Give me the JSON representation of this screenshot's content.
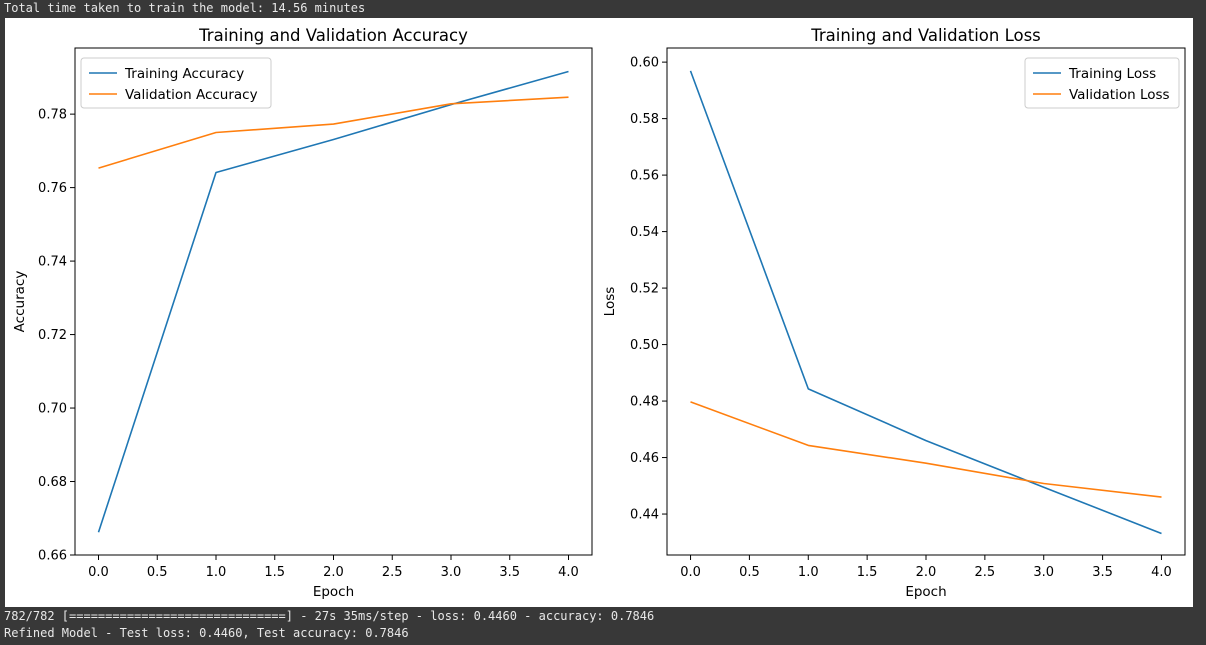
{
  "console": {
    "top_line": "Total time taken to train the model: 14.56 minutes",
    "progress_line": "782/782 [==============================] - 27s 35ms/step - loss: 0.4460 - accuracy: 0.7846",
    "result_line": "Refined Model - Test loss: 0.4460, Test accuracy: 0.7846"
  },
  "chart_data": [
    {
      "type": "line",
      "title": "Training and Validation Accuracy",
      "xlabel": "Epoch",
      "ylabel": "Accuracy",
      "x": [
        0,
        1,
        2,
        3,
        4
      ],
      "xlim": [
        -0.2,
        4.2
      ],
      "ylim": [
        0.66,
        0.798
      ],
      "xticks": [
        "0.0",
        "0.5",
        "1.0",
        "1.5",
        "2.0",
        "2.5",
        "3.0",
        "3.5",
        "4.0"
      ],
      "yticks": [
        "0.66",
        "0.68",
        "0.70",
        "0.72",
        "0.74",
        "0.76",
        "0.78"
      ],
      "legend": "top-left",
      "grid": false,
      "series": [
        {
          "name": "Training Accuracy",
          "color": "#1f77b4",
          "values": [
            0.6662,
            0.7641,
            0.7731,
            0.7826,
            0.7916
          ]
        },
        {
          "name": "Validation Accuracy",
          "color": "#ff7f0e",
          "values": [
            0.7653,
            0.775,
            0.7773,
            0.7828,
            0.7846
          ]
        }
      ]
    },
    {
      "type": "line",
      "title": "Training and Validation Loss",
      "xlabel": "Epoch",
      "ylabel": "Loss",
      "x": [
        0,
        1,
        2,
        3,
        4
      ],
      "xlim": [
        -0.2,
        4.2
      ],
      "ylim": [
        0.4255,
        0.605
      ],
      "xticks": [
        "0.0",
        "0.5",
        "1.0",
        "1.5",
        "2.0",
        "2.5",
        "3.0",
        "3.5",
        "4.0"
      ],
      "yticks": [
        "0.44",
        "0.46",
        "0.48",
        "0.50",
        "0.52",
        "0.54",
        "0.56",
        "0.58",
        "0.60"
      ],
      "legend": "top-right",
      "grid": false,
      "series": [
        {
          "name": "Training Loss",
          "color": "#1f77b4",
          "values": [
            0.5969,
            0.4843,
            0.466,
            0.4495,
            0.4331
          ]
        },
        {
          "name": "Validation Loss",
          "color": "#ff7f0e",
          "values": [
            0.4797,
            0.4643,
            0.458,
            0.4508,
            0.446
          ]
        }
      ]
    }
  ]
}
